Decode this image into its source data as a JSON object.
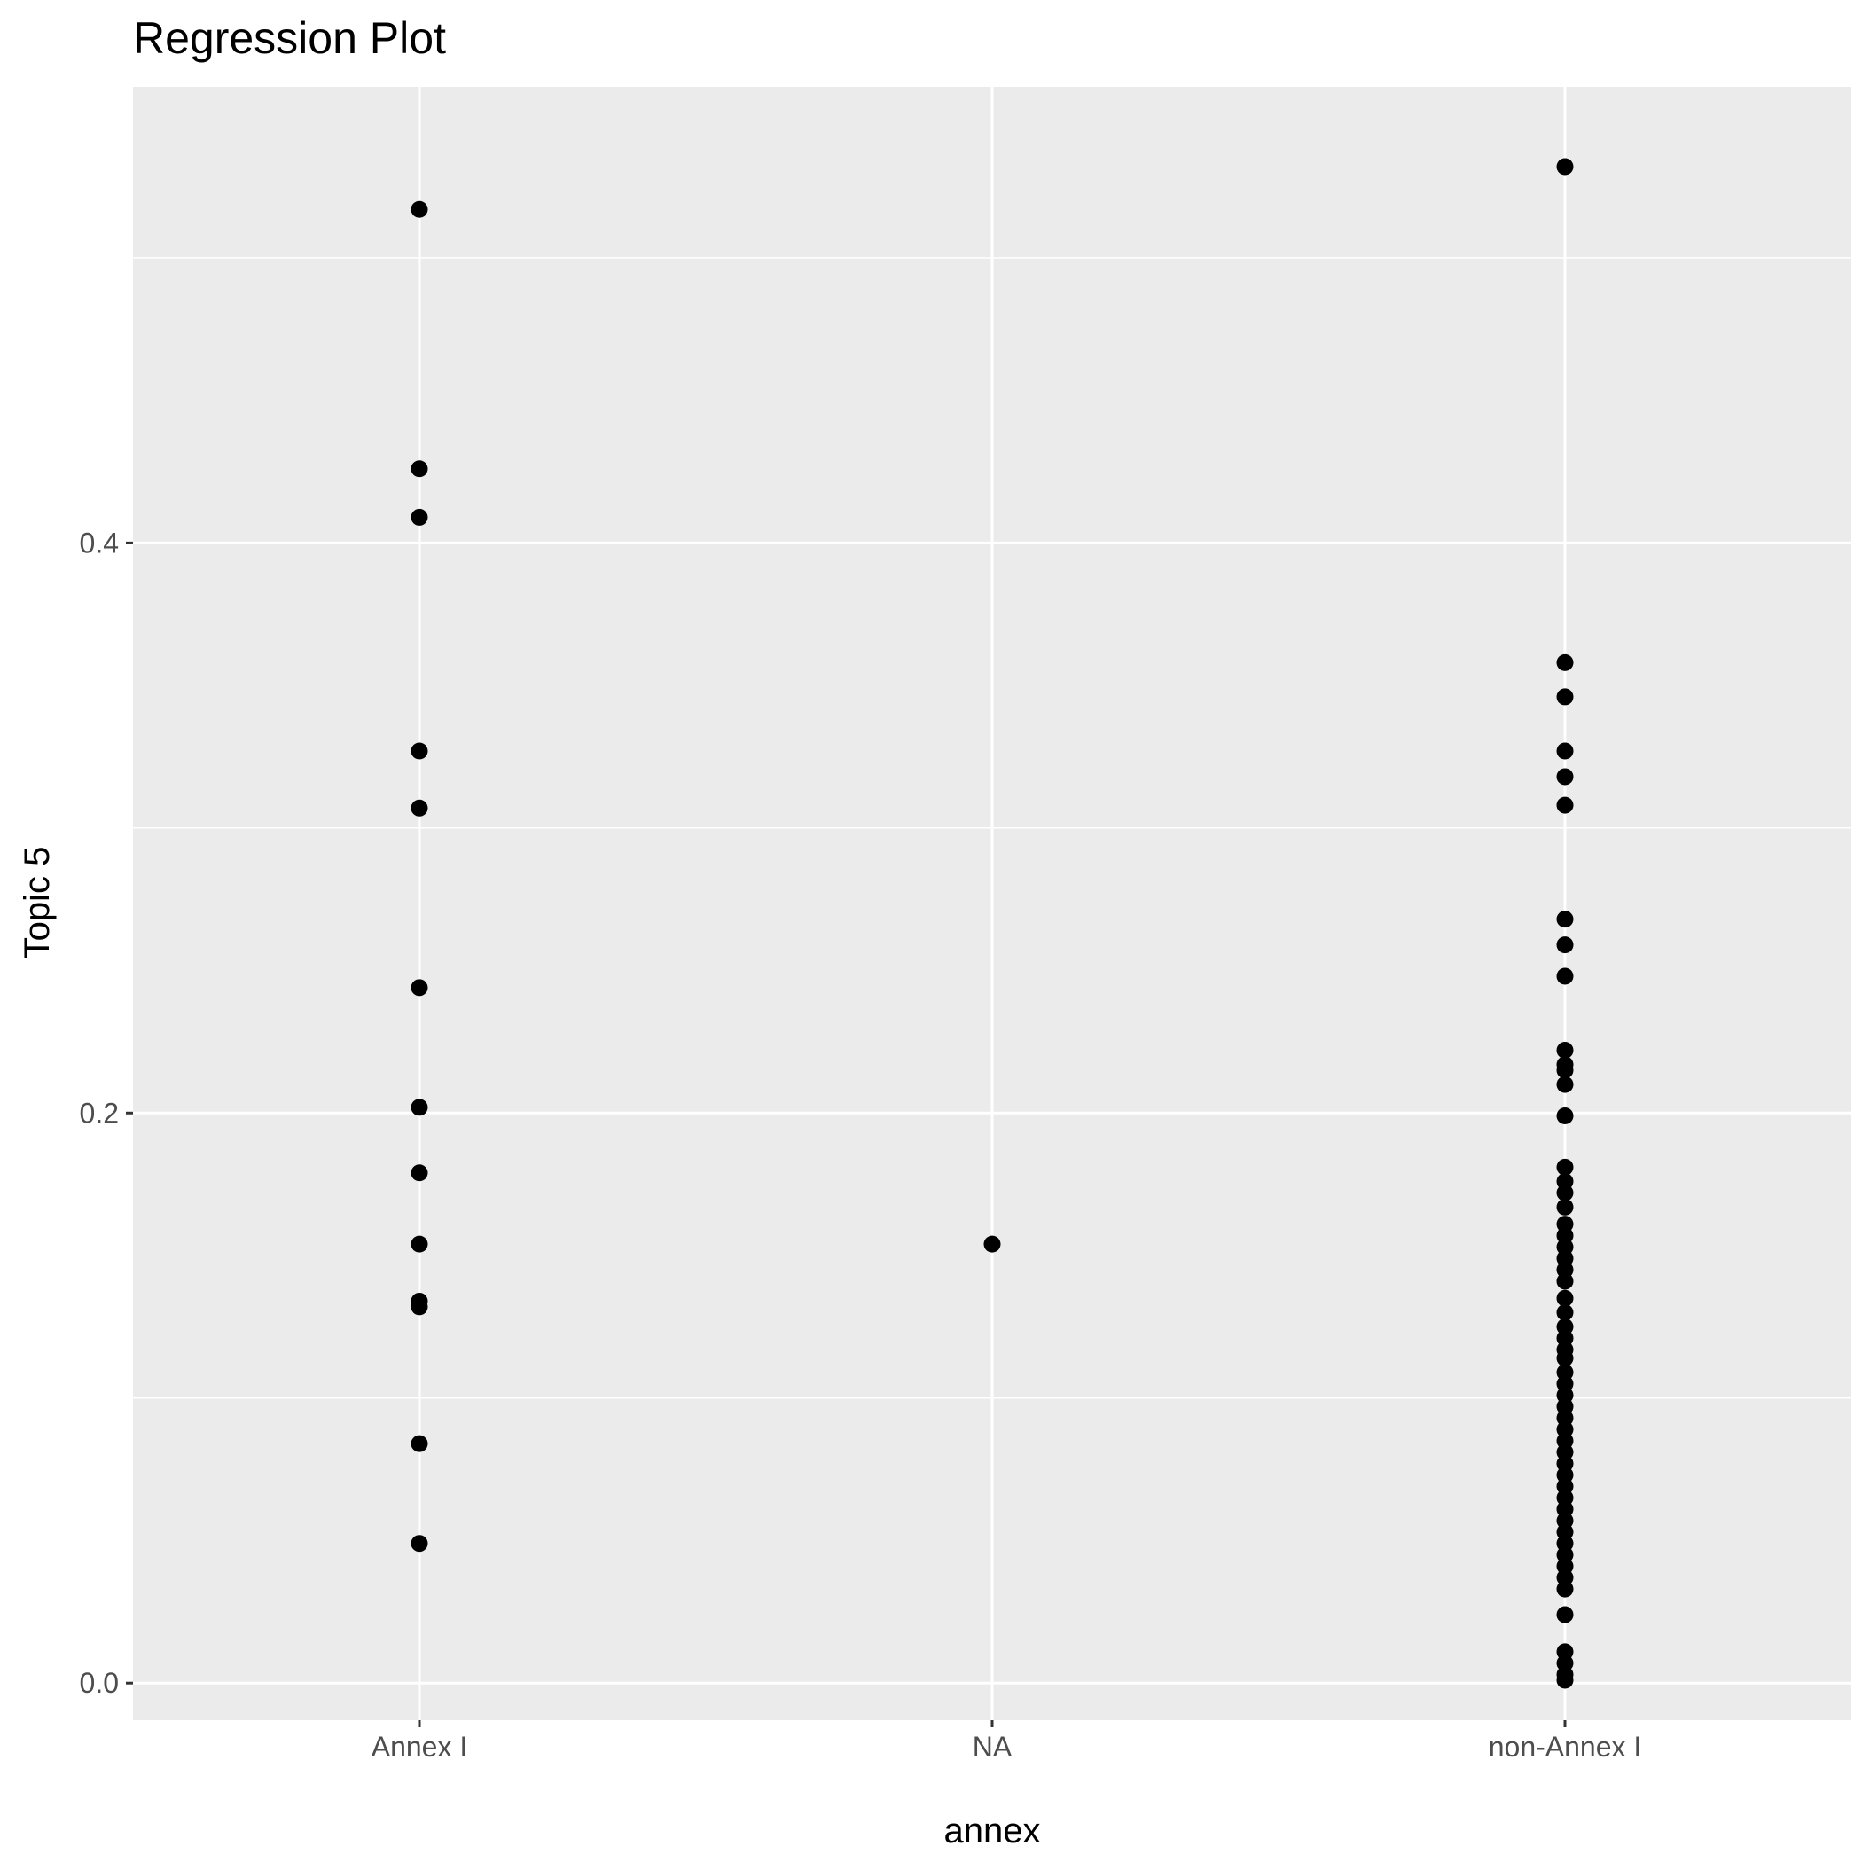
{
  "chart_data": {
    "type": "scatter",
    "title": "Regression Plot",
    "xlabel": "annex",
    "ylabel": "Topic 5",
    "categories": [
      "Annex I",
      "NA",
      "non-Annex I"
    ],
    "ylim": [
      -0.013,
      0.56
    ],
    "yticks": [
      0.0,
      0.2,
      0.4
    ],
    "ytick_labels": [
      "0.0",
      "0.2",
      "0.4"
    ],
    "grid": true,
    "colors": {
      "panel": "#EBEBEB",
      "grid": "#FFFFFF",
      "point": "#000000",
      "tick": "#333333"
    },
    "points": [
      {
        "category": "Annex I",
        "values": [
          0.517,
          0.426,
          0.409,
          0.327,
          0.307,
          0.244,
          0.202,
          0.179,
          0.154,
          0.134,
          0.132,
          0.084,
          0.049
        ]
      },
      {
        "category": "NA",
        "values": [
          0.154
        ]
      },
      {
        "category": "non-Annex I",
        "values": [
          0.532,
          0.358,
          0.346,
          0.327,
          0.318,
          0.308,
          0.268,
          0.259,
          0.248,
          0.222,
          0.217,
          0.215,
          0.21,
          0.199,
          0.181,
          0.176,
          0.172,
          0.167,
          0.161,
          0.157,
          0.153,
          0.149,
          0.145,
          0.141,
          0.135,
          0.13,
          0.125,
          0.121,
          0.117,
          0.114,
          0.109,
          0.105,
          0.101,
          0.097,
          0.093,
          0.089,
          0.085,
          0.081,
          0.077,
          0.073,
          0.069,
          0.065,
          0.061,
          0.057,
          0.053,
          0.049,
          0.045,
          0.041,
          0.037,
          0.033,
          0.024,
          0.011,
          0.007,
          0.003,
          0.001
        ]
      }
    ]
  }
}
